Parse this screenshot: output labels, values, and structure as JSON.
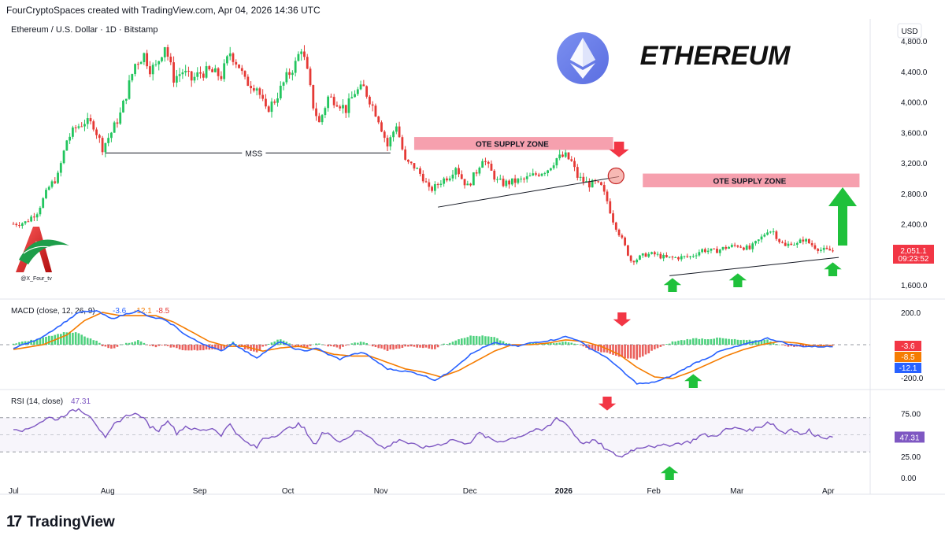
{
  "header": {
    "text": "FourCryptoSpaces created with TradingView.com, Apr 04, 2026 14:36 UTC"
  },
  "footer": {
    "logo_mark": "17",
    "brand": "TradingView"
  },
  "branding": {
    "title": "ETHEREUM",
    "author_logo_text": "@X_Four_tv",
    "coin_icon": "ethereum-logo-icon"
  },
  "colors": {
    "up": "#26a69a",
    "up_green": "#22c55e",
    "down": "#e53935",
    "macd_line": "#2962ff",
    "signal_line": "#f57c00",
    "rsi_line": "#7e57c2",
    "zone_fill": "#f48fa0",
    "arrow_red": "#f23645",
    "arrow_green": "#1fc13b"
  },
  "chart_data": [
    {
      "type": "candlestick",
      "title": "Ethereum / U.S. Dollar · 1D · Bitstamp",
      "currency": "USD",
      "ylim": [
        1450,
        4950
      ],
      "y_ticks": [
        "1,600.0",
        "2,000.0",
        "2,400.0",
        "2,800.0",
        "3,200.0",
        "3,600.0",
        "4,000.0",
        "4,400.0",
        "4,800.0"
      ],
      "x_ticks": [
        "Jul",
        "Aug",
        "Sep",
        "Oct",
        "Nov",
        "Dec",
        "2026",
        "Feb",
        "Mar",
        "Apr"
      ],
      "x_tick_days": [
        0,
        31,
        62,
        92,
        123,
        153,
        184,
        215,
        243,
        274
      ],
      "anchors": [
        [
          0,
          2400
        ],
        [
          4,
          2420
        ],
        [
          8,
          2560
        ],
        [
          12,
          2880
        ],
        [
          15,
          3030
        ],
        [
          18,
          3500
        ],
        [
          21,
          3660
        ],
        [
          24,
          3740
        ],
        [
          27,
          3700
        ],
        [
          30,
          3400
        ],
        [
          33,
          3600
        ],
        [
          36,
          3840
        ],
        [
          38,
          4100
        ],
        [
          41,
          4500
        ],
        [
          44,
          4620
        ],
        [
          46,
          4440
        ],
        [
          48,
          4460
        ],
        [
          51,
          4750
        ],
        [
          54,
          4310
        ],
        [
          57,
          4400
        ],
        [
          60,
          4290
        ],
        [
          63,
          4380
        ],
        [
          66,
          4400
        ],
        [
          70,
          4340
        ],
        [
          73,
          4650
        ],
        [
          76,
          4470
        ],
        [
          78,
          4270
        ],
        [
          82,
          4200
        ],
        [
          85,
          3880
        ],
        [
          88,
          4020
        ],
        [
          92,
          4320
        ],
        [
          95,
          4500
        ],
        [
          97,
          4720
        ],
        [
          99,
          4380
        ],
        [
          101,
          3950
        ],
        [
          103,
          3720
        ],
        [
          106,
          4060
        ],
        [
          109,
          4010
        ],
        [
          112,
          3900
        ],
        [
          115,
          4130
        ],
        [
          118,
          4180
        ],
        [
          120,
          4030
        ],
        [
          123,
          3780
        ],
        [
          126,
          3420
        ],
        [
          129,
          3710
        ],
        [
          132,
          3210
        ],
        [
          135,
          3150
        ],
        [
          138,
          3010
        ],
        [
          140,
          2840
        ],
        [
          142,
          2880
        ],
        [
          144,
          2960
        ],
        [
          147,
          3040
        ],
        [
          149,
          3160
        ],
        [
          151,
          3000
        ],
        [
          153,
          2890
        ],
        [
          156,
          3090
        ],
        [
          158,
          3270
        ],
        [
          160,
          3140
        ],
        [
          163,
          2960
        ],
        [
          165,
          2930
        ],
        [
          168,
          2950
        ],
        [
          172,
          2980
        ],
        [
          176,
          3050
        ],
        [
          180,
          3120
        ],
        [
          183,
          3260
        ],
        [
          186,
          3290
        ],
        [
          188,
          3210
        ],
        [
          190,
          3020
        ],
        [
          192,
          2960
        ],
        [
          194,
          2920
        ],
        [
          196,
          2930
        ],
        [
          198,
          2880
        ],
        [
          200,
          2700
        ],
        [
          202,
          2450
        ],
        [
          204,
          2280
        ],
        [
          206,
          2100
        ],
        [
          208,
          1920
        ],
        [
          210,
          1940
        ],
        [
          213,
          2000
        ],
        [
          216,
          2000
        ],
        [
          220,
          1950
        ],
        [
          224,
          1960
        ],
        [
          228,
          1970
        ],
        [
          232,
          2060
        ],
        [
          236,
          2040
        ],
        [
          240,
          2090
        ],
        [
          244,
          2120
        ],
        [
          248,
          2070
        ],
        [
          252,
          2220
        ],
        [
          254,
          2320
        ],
        [
          256,
          2300
        ],
        [
          258,
          2180
        ],
        [
          260,
          2100
        ],
        [
          262,
          2160
        ],
        [
          264,
          2130
        ],
        [
          266,
          2200
        ],
        [
          268,
          2150
        ],
        [
          270,
          2100
        ],
        [
          272,
          2060
        ],
        [
          274,
          2050
        ],
        [
          276,
          2051
        ]
      ],
      "last_price": "2,051.1",
      "countdown": "09:23:52",
      "annotations": {
        "mss": "MSS",
        "zone1": "OTE SUPPLY ZONE",
        "zone2": "OTE SUPPLY ZONE"
      }
    },
    {
      "type": "macd",
      "title": "MACD (close, 12, 26, 9)",
      "values_legend": [
        "-3.6",
        "-12.1",
        "-8.5"
      ],
      "y_ticks": [
        "200.0",
        "-200.0"
      ],
      "ylim": [
        -270,
        270
      ],
      "macd_anchors": [
        [
          0,
          -20
        ],
        [
          8,
          30
        ],
        [
          15,
          110
        ],
        [
          22,
          200
        ],
        [
          28,
          210
        ],
        [
          33,
          160
        ],
        [
          38,
          190
        ],
        [
          42,
          210
        ],
        [
          46,
          170
        ],
        [
          50,
          160
        ],
        [
          54,
          120
        ],
        [
          58,
          60
        ],
        [
          62,
          20
        ],
        [
          66,
          -10
        ],
        [
          70,
          -40
        ],
        [
          74,
          10
        ],
        [
          78,
          -40
        ],
        [
          82,
          -80
        ],
        [
          86,
          -30
        ],
        [
          90,
          20
        ],
        [
          94,
          -20
        ],
        [
          98,
          -40
        ],
        [
          102,
          -20
        ],
        [
          106,
          -60
        ],
        [
          110,
          -90
        ],
        [
          114,
          -60
        ],
        [
          118,
          -50
        ],
        [
          122,
          -100
        ],
        [
          126,
          -150
        ],
        [
          130,
          -160
        ],
        [
          134,
          -170
        ],
        [
          138,
          -190
        ],
        [
          142,
          -220
        ],
        [
          146,
          -180
        ],
        [
          150,
          -120
        ],
        [
          154,
          -60
        ],
        [
          158,
          -20
        ],
        [
          162,
          10
        ],
        [
          166,
          0
        ],
        [
          170,
          -10
        ],
        [
          174,
          10
        ],
        [
          178,
          20
        ],
        [
          182,
          30
        ],
        [
          186,
          50
        ],
        [
          190,
          30
        ],
        [
          194,
          -20
        ],
        [
          198,
          -60
        ],
        [
          202,
          -110
        ],
        [
          206,
          -180
        ],
        [
          210,
          -240
        ],
        [
          214,
          -240
        ],
        [
          218,
          -220
        ],
        [
          222,
          -190
        ],
        [
          226,
          -150
        ],
        [
          230,
          -110
        ],
        [
          234,
          -80
        ],
        [
          238,
          -40
        ],
        [
          242,
          -20
        ],
        [
          246,
          0
        ],
        [
          250,
          20
        ],
        [
          254,
          40
        ],
        [
          258,
          20
        ],
        [
          262,
          0
        ],
        [
          266,
          -10
        ],
        [
          270,
          -12
        ],
        [
          276,
          -12
        ]
      ],
      "signal_anchors": [
        [
          0,
          -30
        ],
        [
          10,
          0
        ],
        [
          18,
          60
        ],
        [
          24,
          150
        ],
        [
          30,
          200
        ],
        [
          36,
          180
        ],
        [
          42,
          180
        ],
        [
          48,
          180
        ],
        [
          54,
          140
        ],
        [
          60,
          80
        ],
        [
          66,
          20
        ],
        [
          72,
          -10
        ],
        [
          78,
          -10
        ],
        [
          84,
          -40
        ],
        [
          90,
          -20
        ],
        [
          96,
          -10
        ],
        [
          102,
          -30
        ],
        [
          108,
          -60
        ],
        [
          114,
          -70
        ],
        [
          120,
          -70
        ],
        [
          126,
          -110
        ],
        [
          132,
          -150
        ],
        [
          138,
          -170
        ],
        [
          144,
          -200
        ],
        [
          150,
          -160
        ],
        [
          156,
          -100
        ],
        [
          162,
          -40
        ],
        [
          168,
          0
        ],
        [
          174,
          0
        ],
        [
          180,
          10
        ],
        [
          186,
          30
        ],
        [
          192,
          20
        ],
        [
          198,
          -10
        ],
        [
          204,
          -60
        ],
        [
          210,
          -140
        ],
        [
          216,
          -200
        ],
        [
          222,
          -210
        ],
        [
          228,
          -170
        ],
        [
          234,
          -120
        ],
        [
          240,
          -70
        ],
        [
          246,
          -30
        ],
        [
          252,
          0
        ],
        [
          258,
          20
        ],
        [
          264,
          10
        ],
        [
          270,
          -8
        ],
        [
          276,
          -8
        ]
      ]
    },
    {
      "type": "rsi",
      "title": "RSI (14, close)",
      "value": "47.31",
      "y_ticks": [
        "75.00",
        "25.00",
        "0.00"
      ],
      "bands": [
        70,
        50,
        30
      ],
      "ylim": [
        -10,
        100
      ],
      "anchors": [
        [
          0,
          58
        ],
        [
          4,
          55
        ],
        [
          8,
          63
        ],
        [
          12,
          70
        ],
        [
          15,
          68
        ],
        [
          18,
          75
        ],
        [
          22,
          80
        ],
        [
          26,
          72
        ],
        [
          28,
          62
        ],
        [
          31,
          45
        ],
        [
          34,
          62
        ],
        [
          37,
          70
        ],
        [
          40,
          75
        ],
        [
          43,
          72
        ],
        [
          46,
          60
        ],
        [
          49,
          55
        ],
        [
          52,
          68
        ],
        [
          55,
          52
        ],
        [
          58,
          60
        ],
        [
          61,
          56
        ],
        [
          64,
          55
        ],
        [
          67,
          58
        ],
        [
          70,
          50
        ],
        [
          73,
          63
        ],
        [
          76,
          48
        ],
        [
          78,
          42
        ],
        [
          80,
          38
        ],
        [
          82,
          35
        ],
        [
          84,
          46
        ],
        [
          87,
          48
        ],
        [
          90,
          52
        ],
        [
          93,
          58
        ],
        [
          96,
          62
        ],
        [
          98,
          57
        ],
        [
          100,
          44
        ],
        [
          102,
          40
        ],
        [
          104,
          52
        ],
        [
          107,
          50
        ],
        [
          110,
          42
        ],
        [
          113,
          48
        ],
        [
          116,
          55
        ],
        [
          119,
          50
        ],
        [
          121,
          46
        ],
        [
          123,
          38
        ],
        [
          125,
          34
        ],
        [
          127,
          38
        ],
        [
          130,
          45
        ],
        [
          133,
          40
        ],
        [
          136,
          37
        ],
        [
          139,
          35
        ],
        [
          142,
          38
        ],
        [
          145,
          40
        ],
        [
          148,
          45
        ],
        [
          151,
          40
        ],
        [
          154,
          42
        ],
        [
          157,
          52
        ],
        [
          160,
          46
        ],
        [
          163,
          42
        ],
        [
          166,
          44
        ],
        [
          169,
          47
        ],
        [
          172,
          50
        ],
        [
          175,
          55
        ],
        [
          178,
          55
        ],
        [
          181,
          62
        ],
        [
          183,
          70
        ],
        [
          185,
          66
        ],
        [
          187,
          60
        ],
        [
          189,
          50
        ],
        [
          191,
          42
        ],
        [
          193,
          40
        ],
        [
          195,
          44
        ],
        [
          198,
          38
        ],
        [
          200,
          32
        ],
        [
          202,
          28
        ],
        [
          205,
          24
        ],
        [
          208,
          32
        ],
        [
          211,
          35
        ],
        [
          214,
          38
        ],
        [
          217,
          36
        ],
        [
          220,
          38
        ],
        [
          224,
          40
        ],
        [
          228,
          42
        ],
        [
          232,
          50
        ],
        [
          236,
          48
        ],
        [
          240,
          56
        ],
        [
          244,
          58
        ],
        [
          248,
          55
        ],
        [
          252,
          60
        ],
        [
          254,
          65
        ],
        [
          256,
          62
        ],
        [
          258,
          55
        ],
        [
          260,
          52
        ],
        [
          262,
          58
        ],
        [
          264,
          53
        ],
        [
          266,
          50
        ],
        [
          268,
          55
        ],
        [
          270,
          50
        ],
        [
          272,
          48
        ],
        [
          274,
          47
        ],
        [
          276,
          47.31
        ]
      ]
    }
  ]
}
